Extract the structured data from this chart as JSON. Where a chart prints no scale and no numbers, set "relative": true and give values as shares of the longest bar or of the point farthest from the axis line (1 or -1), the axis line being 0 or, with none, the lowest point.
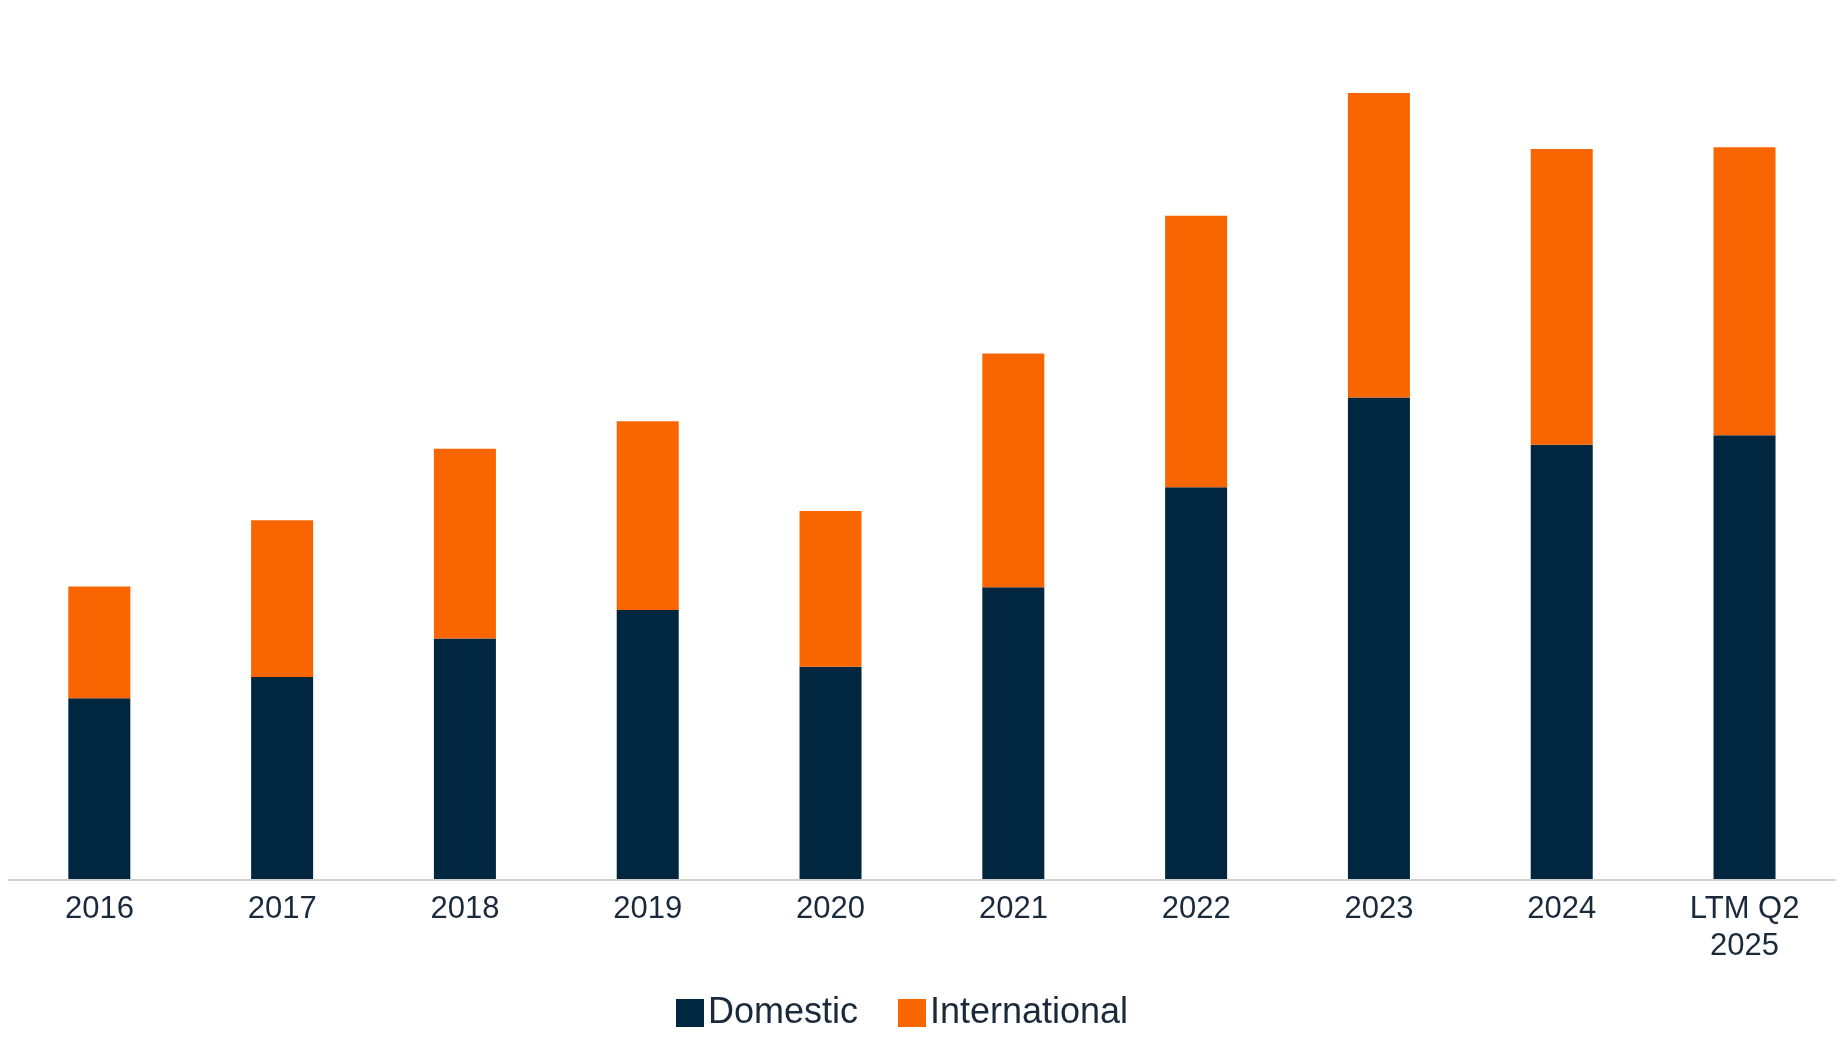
{
  "chart_data": {
    "type": "bar",
    "relative": true,
    "stacked": true,
    "legend": "bottom",
    "grid": false,
    "categories": [
      "2016",
      "2017",
      "2018",
      "2019",
      "2020",
      "2021",
      "2022",
      "2023",
      "2024",
      "LTM Q2 2025"
    ],
    "series": [
      {
        "name": "Domestic",
        "color": "#012640",
        "values": [
          0.231,
          0.258,
          0.307,
          0.343,
          0.271,
          0.372,
          0.499,
          0.613,
          0.553,
          0.565
        ]
      },
      {
        "name": "International",
        "color": "#f96500",
        "values": [
          0.142,
          0.199,
          0.241,
          0.24,
          0.198,
          0.297,
          0.345,
          0.387,
          0.376,
          0.366
        ]
      }
    ]
  }
}
